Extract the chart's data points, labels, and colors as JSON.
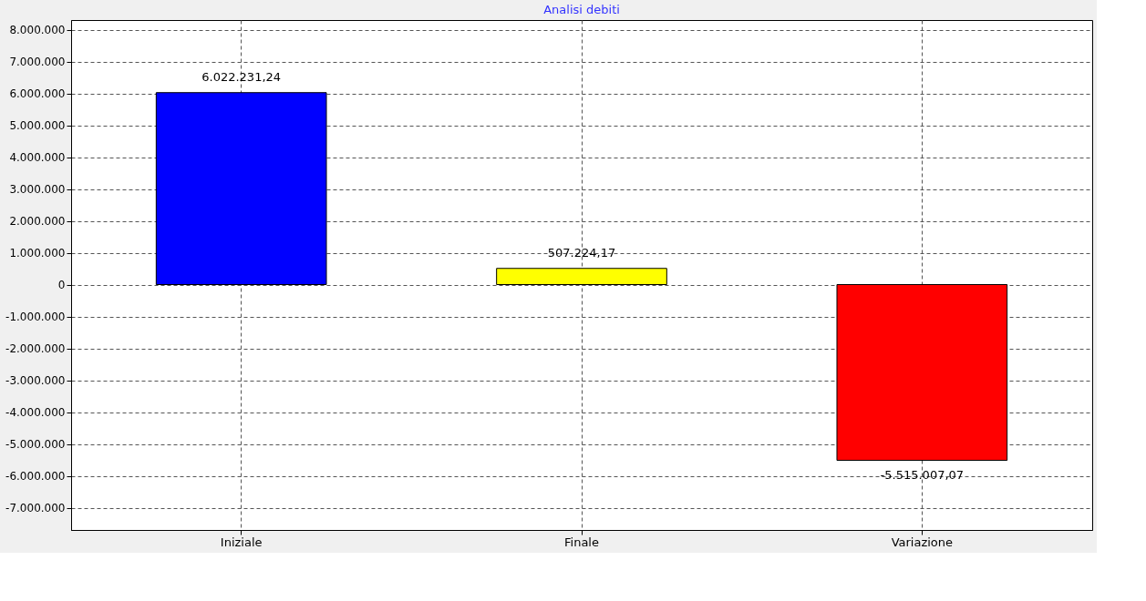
{
  "chart_data": {
    "type": "bar",
    "title": "Analisi debiti",
    "categories": [
      "Iniziale",
      "Finale",
      "Variazione"
    ],
    "values": [
      6022231.24,
      507224.17,
      -5515007.07
    ],
    "colors": [
      "#0000ff",
      "#ffff00",
      "#ff0000"
    ],
    "value_labels": [
      "6.022.231,24",
      "507.224,17",
      "-5.515.007,07"
    ],
    "ylim": [
      -7700000,
      8300000
    ],
    "yticks": [
      {
        "value": 8000000,
        "label": "8.000.000"
      },
      {
        "value": 7000000,
        "label": "7.000.000"
      },
      {
        "value": 6000000,
        "label": "6.000.000"
      },
      {
        "value": 5000000,
        "label": "5.000.000"
      },
      {
        "value": 4000000,
        "label": "4.000.000"
      },
      {
        "value": 3000000,
        "label": "3.000.000"
      },
      {
        "value": 2000000,
        "label": "2.000.000"
      },
      {
        "value": 1000000,
        "label": "1.000.000"
      },
      {
        "value": 0,
        "label": "0"
      },
      {
        "value": -1000000,
        "label": "-1.000.000"
      },
      {
        "value": -2000000,
        "label": "-2.000.000"
      },
      {
        "value": -3000000,
        "label": "-3.000.000"
      },
      {
        "value": -4000000,
        "label": "-4.000.000"
      },
      {
        "value": -5000000,
        "label": "-5.000.000"
      },
      {
        "value": -6000000,
        "label": "-6.000.000"
      },
      {
        "value": -7000000,
        "label": "-7.000.000"
      }
    ],
    "grid": true
  }
}
